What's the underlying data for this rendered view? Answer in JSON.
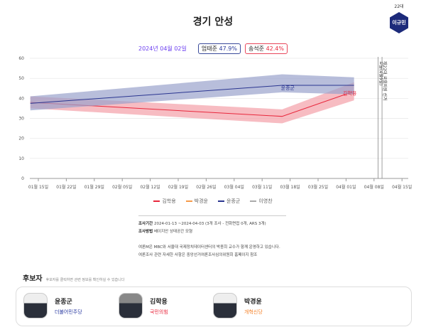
{
  "header": {
    "title": "경기 안성",
    "generation": "22대",
    "badge_name": "이규민"
  },
  "summary": {
    "date": "2024년 04월 02일",
    "leader1": {
      "name": "엄태준",
      "value": "47.9%"
    },
    "leader2": {
      "name": "송석준",
      "value": "42.4%"
    }
  },
  "chart_data": {
    "type": "line",
    "ylim": [
      0,
      60
    ],
    "yticks": [
      0,
      10,
      20,
      30,
      40,
      50,
      60
    ],
    "xlim": [
      "2024-01-13",
      "2024-04-17"
    ],
    "xticks": [
      "2024-01-15",
      "2024-01-22",
      "2024-01-29",
      "2024-02-05",
      "2024-02-12",
      "2024-02-19",
      "2024-02-26",
      "2024-03-04",
      "2024-03-11",
      "2024-03-18",
      "2024-03-25",
      "2024-04-01",
      "2024-04-08",
      "2024-04-15"
    ],
    "xtick_labels": [
      "01월 15일",
      "01월 22일",
      "01월 29일",
      "02월 05일",
      "02월 12일",
      "02월 19일",
      "02월 26일",
      "03월 04일",
      "03월 11일",
      "03월 18일",
      "03월 25일",
      "04월 01일",
      "04월 08일",
      "04월 15일"
    ],
    "grid": true,
    "legend_position": "bottom",
    "series": [
      {
        "name": "김학용",
        "color": "#e8273c",
        "band_color": "#f4a0a8",
        "x": [
          "2024-01-13",
          "2024-03-16",
          "2024-04-03"
        ],
        "values": [
          38,
          31,
          43.5
        ],
        "lower": [
          35,
          27.5,
          39
        ],
        "upper": [
          41,
          34.5,
          48
        ],
        "label": "김학용"
      },
      {
        "name": "박경윤",
        "color": "#f59a4a",
        "x": [],
        "values": []
      },
      {
        "name": "윤종군",
        "color": "#2a3590",
        "band_color": "#9aa3cc",
        "x": [
          "2024-01-13",
          "2024-03-16",
          "2024-04-03"
        ],
        "values": [
          37.5,
          46.5,
          46.5
        ],
        "lower": [
          34,
          43,
          42
        ],
        "upper": [
          41,
          52,
          50.5
        ],
        "label": "윤종군"
      },
      {
        "name": "이영찬",
        "color": "#aaaaaa",
        "x": [],
        "values": []
      }
    ],
    "annotations": [
      {
        "date": "2024-04-09",
        "text": "오늘(4월9일)"
      },
      {
        "date": "2024-04-10",
        "text": "제22대 국회의원 선거"
      }
    ]
  },
  "notes": {
    "period_label": "조사기간",
    "period": "2024-01-13 ~2024-04-03 (3개 조사 - 전화면접 0개, ARS 3개)",
    "method_label": "조사방법",
    "method": "베이지안 상태공간 모형",
    "line1": "여론M은 MBC와 서울대 국제정치데이터센터의 박종희 교수가 함께 운영하고 있습니다.",
    "line2": "여론조사 관련 자세한 사항은 중앙선거여론조사심의위원회 홈페이지 참조"
  },
  "candidates": {
    "title": "후보자",
    "hint": "후보자를 클릭하면 관련 정보를 확인하실 수 있습니다",
    "items": [
      {
        "name": "윤종군",
        "party": "더불어민주당",
        "party_color": "#2a3aa0"
      },
      {
        "name": "김학용",
        "party": "국민의힘",
        "party_color": "#e8273c"
      },
      {
        "name": "박경윤",
        "party": "개혁신당",
        "party_color": "#f5822a"
      }
    ]
  }
}
